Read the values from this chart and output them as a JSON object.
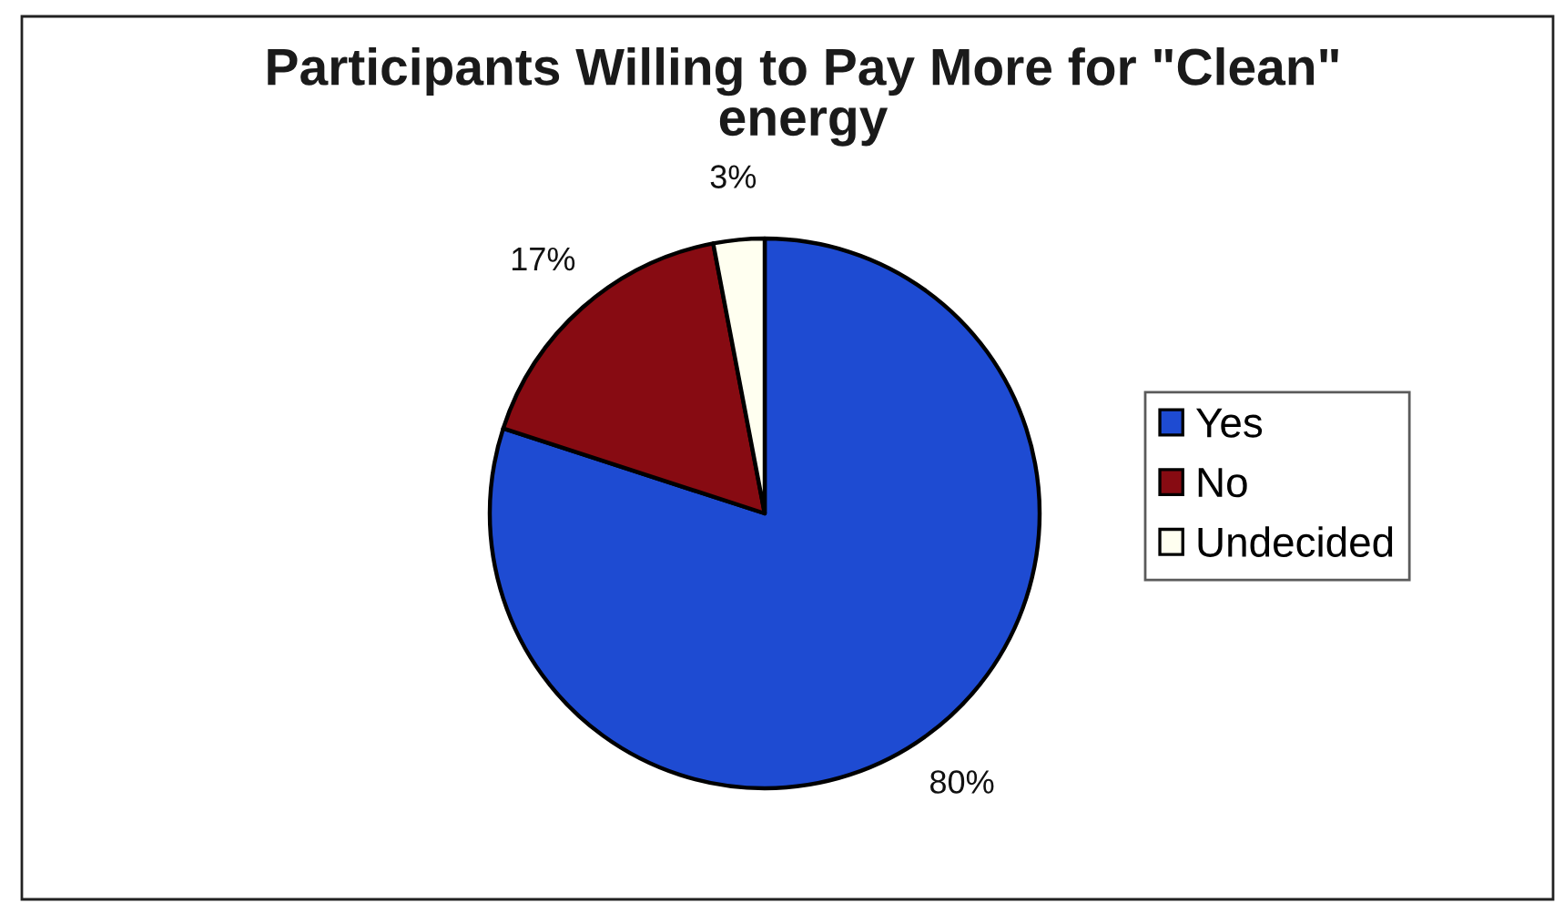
{
  "chart_data": {
    "type": "pie",
    "title": "Participants Willing to Pay More for \"Clean\"\nenergy",
    "categories": [
      "Yes",
      "No",
      "Undecided"
    ],
    "values": [
      80,
      17,
      3
    ],
    "colors": [
      "#1e4bd2",
      "#870b12",
      "#fffff0"
    ],
    "value_labels": [
      "80%",
      "17%",
      "3%"
    ],
    "legend": "right"
  }
}
